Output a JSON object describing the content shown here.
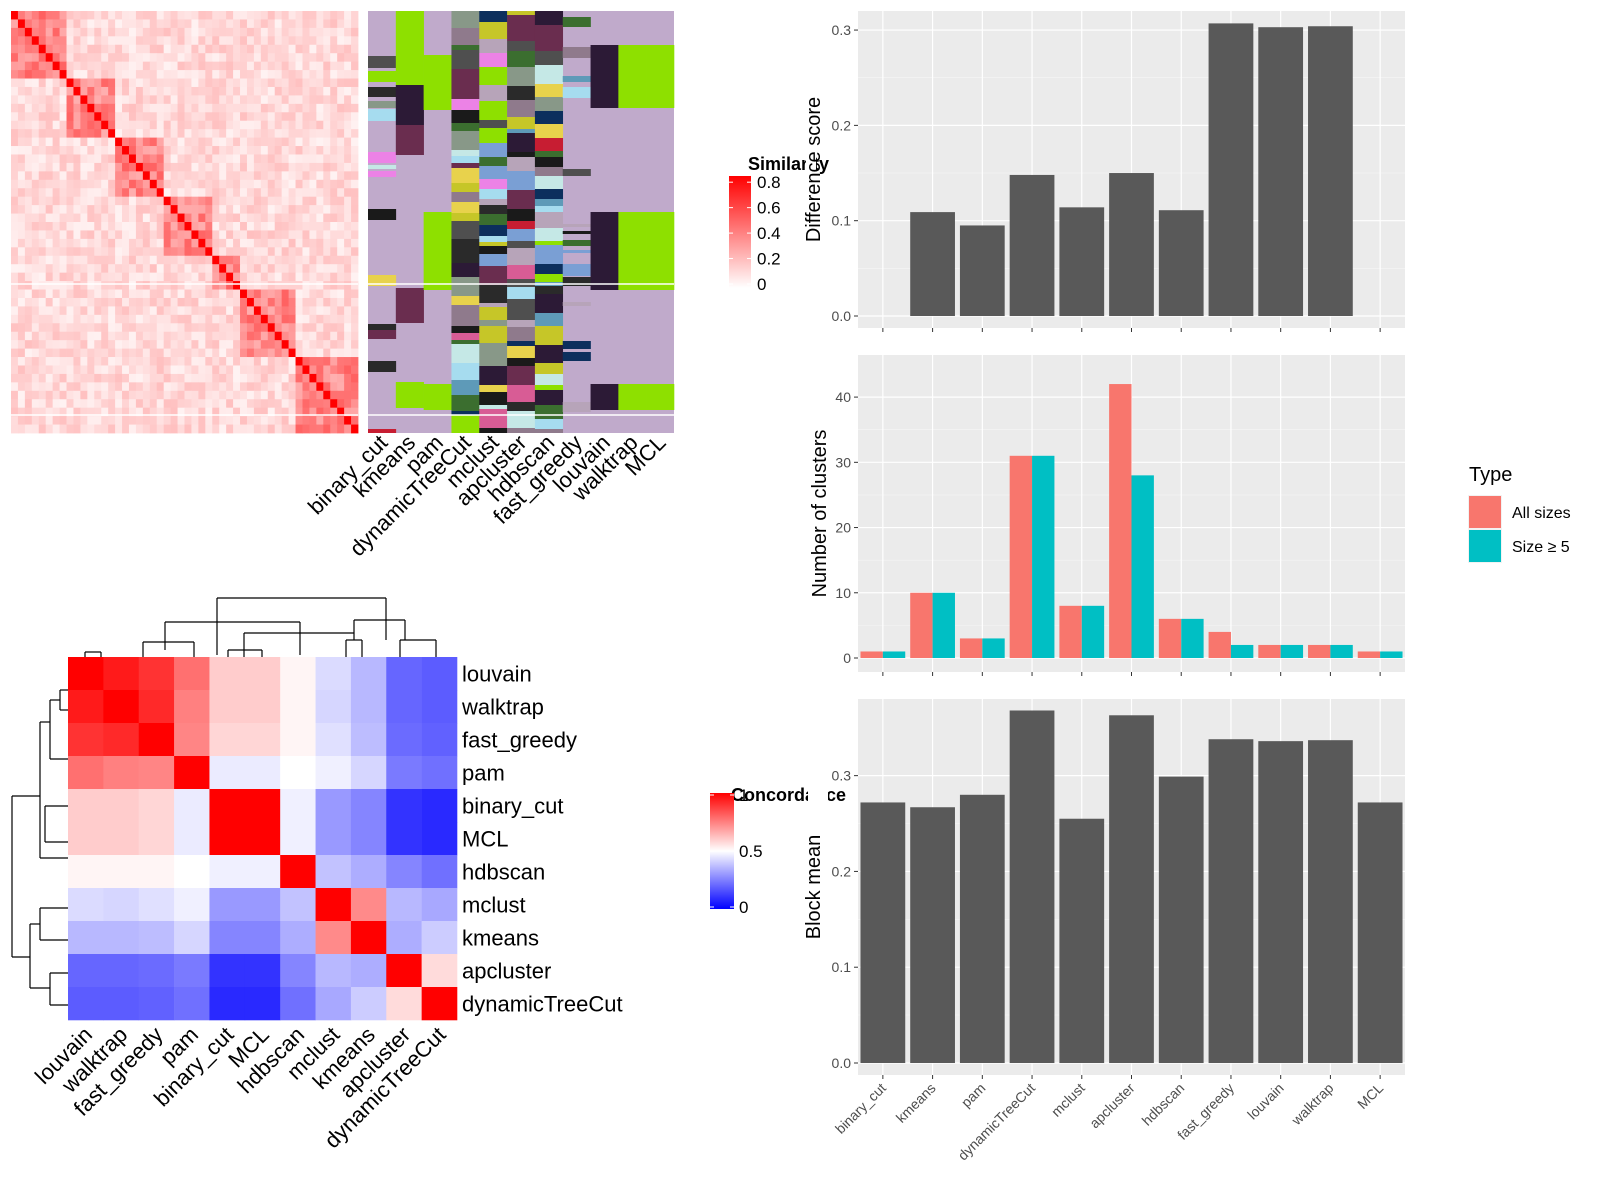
{
  "methods_heatmap_order": [
    "binary_cut",
    "kmeans",
    "pam",
    "dynamicTreeCut",
    "mclust",
    "apcluster",
    "hdbscan",
    "fast_greedy",
    "louvain",
    "walktrap",
    "MCL"
  ],
  "similarity_legend": {
    "title": "Similarity",
    "ticks": [
      "0",
      "0.2",
      "0.4",
      "0.6",
      "0.8"
    ],
    "colors": [
      "#ffffff",
      "#ff0000"
    ]
  },
  "concordance_legend": {
    "title": "Concordance",
    "ticks": [
      "0",
      "0.5",
      "1"
    ],
    "colors": [
      "#0000ff",
      "#ffffff",
      "#ff0000"
    ]
  },
  "chart_data": [
    {
      "id": "similarity-heatmap",
      "type": "heatmap",
      "title": "",
      "scale": {
        "min": 0,
        "max": 0.8,
        "colors": [
          "#ffffff",
          "#ff0000"
        ]
      },
      "grid": false
    },
    {
      "id": "cluster-assignment-heatmap",
      "type": "heatmap",
      "title": "",
      "columns": [
        "binary_cut",
        "kmeans",
        "pam",
        "dynamicTreeCut",
        "mclust",
        "apcluster",
        "hdbscan",
        "fast_greedy",
        "louvain",
        "walktrap",
        "MCL"
      ]
    },
    {
      "id": "concordance-heatmap",
      "type": "heatmap",
      "title": "",
      "rows": [
        "louvain",
        "walktrap",
        "fast_greedy",
        "pam",
        "binary_cut",
        "MCL",
        "hdbscan",
        "mclust",
        "kmeans",
        "apcluster",
        "dynamicTreeCut"
      ],
      "columns": [
        "louvain",
        "walktrap",
        "fast_greedy",
        "pam",
        "binary_cut",
        "MCL",
        "hdbscan",
        "mclust",
        "kmeans",
        "apcluster",
        "dynamicTreeCut"
      ],
      "scale": {
        "min": 0,
        "max": 1,
        "colors": [
          "#0000ff",
          "#ffffff",
          "#ff0000"
        ]
      },
      "values": [
        [
          1.0,
          0.95,
          0.9,
          0.78,
          0.6,
          0.6,
          0.52,
          0.43,
          0.36,
          0.2,
          0.18
        ],
        [
          0.95,
          1.0,
          0.92,
          0.75,
          0.6,
          0.6,
          0.52,
          0.42,
          0.36,
          0.2,
          0.18
        ],
        [
          0.9,
          0.92,
          1.0,
          0.74,
          0.58,
          0.58,
          0.52,
          0.44,
          0.37,
          0.21,
          0.19
        ],
        [
          0.78,
          0.75,
          0.74,
          1.0,
          0.46,
          0.46,
          0.5,
          0.47,
          0.42,
          0.24,
          0.22
        ],
        [
          0.6,
          0.6,
          0.58,
          0.46,
          1.0,
          1.0,
          0.47,
          0.3,
          0.26,
          0.1,
          0.08
        ],
        [
          0.6,
          0.6,
          0.58,
          0.46,
          1.0,
          1.0,
          0.47,
          0.3,
          0.26,
          0.1,
          0.08
        ],
        [
          0.52,
          0.52,
          0.52,
          0.5,
          0.47,
          0.47,
          1.0,
          0.38,
          0.34,
          0.26,
          0.22
        ],
        [
          0.43,
          0.42,
          0.44,
          0.47,
          0.3,
          0.3,
          0.38,
          1.0,
          0.73,
          0.36,
          0.33
        ],
        [
          0.36,
          0.36,
          0.37,
          0.42,
          0.26,
          0.26,
          0.34,
          0.73,
          1.0,
          0.34,
          0.4
        ],
        [
          0.2,
          0.2,
          0.21,
          0.24,
          0.1,
          0.1,
          0.26,
          0.36,
          0.34,
          1.0,
          0.57
        ],
        [
          0.18,
          0.18,
          0.19,
          0.22,
          0.08,
          0.08,
          0.22,
          0.33,
          0.4,
          0.57,
          1.0
        ]
      ]
    },
    {
      "id": "difference-score-bars",
      "type": "bar",
      "title": "",
      "xlabel": "",
      "ylabel": "Difference score",
      "categories": [
        "binary_cut",
        "kmeans",
        "pam",
        "dynamicTreeCut",
        "mclust",
        "apcluster",
        "hdbscan",
        "fast_greedy",
        "louvain",
        "walktrap",
        "MCL"
      ],
      "values": [
        0.0,
        0.109,
        0.095,
        0.148,
        0.114,
        0.15,
        0.111,
        0.307,
        0.303,
        0.304,
        0.0
      ],
      "ylim": [
        0,
        0.32
      ],
      "yticks": [
        0.0,
        0.1,
        0.2,
        0.3
      ],
      "ytick_labels": [
        "0.0",
        "0.1",
        "0.2",
        "0.3"
      ],
      "bar_color": "#595959",
      "grid": true
    },
    {
      "id": "number-of-clusters-bars",
      "type": "bar",
      "title": "",
      "xlabel": "",
      "ylabel": "Number of clusters",
      "categories": [
        "binary_cut",
        "kmeans",
        "pam",
        "dynamicTreeCut",
        "mclust",
        "apcluster",
        "hdbscan",
        "fast_greedy",
        "louvain",
        "walktrap",
        "MCL"
      ],
      "series": [
        {
          "name": "All sizes",
          "color": "#f8766d",
          "values": [
            1,
            10,
            3,
            31,
            8,
            42,
            6,
            4,
            2,
            2,
            1
          ]
        },
        {
          "name": "Size ≥ 5",
          "color": "#00bfc4",
          "values": [
            1,
            10,
            3,
            31,
            8,
            28,
            6,
            2,
            2,
            2,
            1
          ]
        }
      ],
      "ylim": [
        0,
        44
      ],
      "yticks": [
        0,
        10,
        20,
        30,
        40
      ],
      "ytick_labels": [
        "0",
        "10",
        "20",
        "30",
        "40"
      ],
      "legend": {
        "title": "Type",
        "placement": "right"
      },
      "grid": true
    },
    {
      "id": "block-mean-bars",
      "type": "bar",
      "title": "",
      "xlabel": "",
      "ylabel": "Block mean",
      "categories": [
        "binary_cut",
        "kmeans",
        "pam",
        "dynamicTreeCut",
        "mclust",
        "apcluster",
        "hdbscan",
        "fast_greedy",
        "louvain",
        "walktrap",
        "MCL"
      ],
      "values": [
        0.272,
        0.267,
        0.28,
        0.368,
        0.255,
        0.363,
        0.299,
        0.338,
        0.336,
        0.337,
        0.272
      ],
      "ylim": [
        0,
        0.38
      ],
      "yticks": [
        0.0,
        0.1,
        0.2,
        0.3
      ],
      "ytick_labels": [
        "0.0",
        "0.1",
        "0.2",
        "0.3"
      ],
      "bar_color": "#595959",
      "grid": true
    }
  ]
}
